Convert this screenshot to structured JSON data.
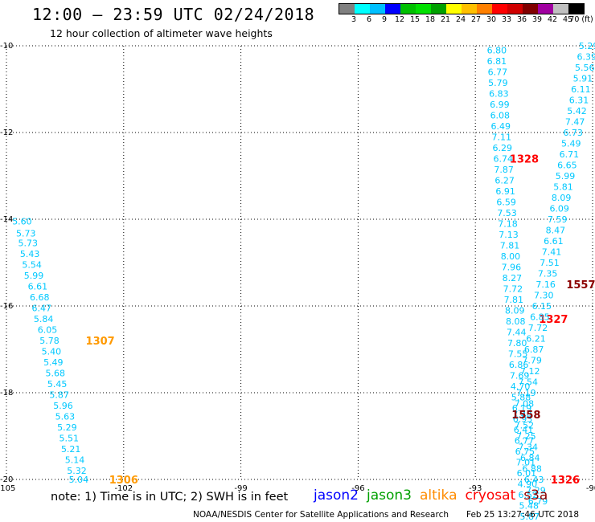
{
  "title": "12:00 – 23:59 UTC 02/24/2018",
  "subtitle": "12 hour collection of altimeter wave heights",
  "legend": {
    "colors": [
      "#808080",
      "#00ffff",
      "#00c0ff",
      "#0000ff",
      "#00c000",
      "#00e000",
      "#00a000",
      "#ffff00",
      "#ffc000",
      "#ff8000",
      "#ff0000",
      "#d00000",
      "#800000",
      "#a000a0",
      "#c0c0c0",
      "#000000"
    ],
    "labels": [
      "3",
      "6",
      "9",
      "12",
      "15",
      "18",
      "21",
      "24",
      "27",
      "30",
      "33",
      "36",
      "39",
      "42",
      "45",
      "70 (ft)"
    ]
  },
  "axes": {
    "lon_ticks": [
      "-105",
      "-102",
      "-99",
      "-96",
      "-93",
      "-90"
    ],
    "lat_ticks": [
      "-10",
      "-12",
      "-14",
      "-16",
      "-18",
      "-20"
    ]
  },
  "note": "note:  1) Time is in UTC;  2) SWH is in feet",
  "satellites": [
    {
      "name": "jason2",
      "color": "#0000ff"
    },
    {
      "name": "jason3",
      "color": "#00a000"
    },
    {
      "name": "altika",
      "color": "#ff8c00"
    },
    {
      "name": "cryosat",
      "color": "#ff0000"
    },
    {
      "name": "s3a",
      "color": "#8b0000"
    }
  ],
  "credit": "NOAA/NESDIS Center for Satellite Applications and Research",
  "timestamp": "Feb 25 13:27:46 UTC 2018",
  "map_data": {
    "lon_range": [
      -105,
      -90
    ],
    "lat_range": [
      -20,
      -10
    ],
    "tracks": [
      {
        "satellite": "altika",
        "color": "#00c8ff",
        "times": [
          {
            "label": "1307",
            "lon": -102.6,
            "lat": -16.8,
            "color": "#ff9900"
          },
          {
            "label": "1306",
            "lon": -102.0,
            "lat": -20.0,
            "color": "#ff9900"
          }
        ],
        "points": [
          {
            "lon": -104.6,
            "lat": -14.05,
            "v": "5.60"
          },
          {
            "lon": -104.5,
            "lat": -14.32,
            "v": "5.73"
          },
          {
            "lon": -104.45,
            "lat": -14.55,
            "v": "5.73"
          },
          {
            "lon": -104.4,
            "lat": -14.8,
            "v": "5.43"
          },
          {
            "lon": -104.35,
            "lat": -15.05,
            "v": "5.54"
          },
          {
            "lon": -104.3,
            "lat": -15.3,
            "v": "5.99"
          },
          {
            "lon": -104.2,
            "lat": -15.55,
            "v": "6.61"
          },
          {
            "lon": -104.15,
            "lat": -15.8,
            "v": "6.68"
          },
          {
            "lon": -104.1,
            "lat": -16.05,
            "v": "6.47"
          },
          {
            "lon": -104.05,
            "lat": -16.3,
            "v": "5.84"
          },
          {
            "lon": -103.95,
            "lat": -16.55,
            "v": "6.05"
          },
          {
            "lon": -103.9,
            "lat": -16.8,
            "v": "5.78"
          },
          {
            "lon": -103.85,
            "lat": -17.05,
            "v": "5.40"
          },
          {
            "lon": -103.8,
            "lat": -17.3,
            "v": "5.49"
          },
          {
            "lon": -103.75,
            "lat": -17.55,
            "v": "5.68"
          },
          {
            "lon": -103.7,
            "lat": -17.8,
            "v": "5.45"
          },
          {
            "lon": -103.65,
            "lat": -18.05,
            "v": "5.87"
          },
          {
            "lon": -103.55,
            "lat": -18.3,
            "v": "5.96"
          },
          {
            "lon": -103.5,
            "lat": -18.55,
            "v": "5.63"
          },
          {
            "lon": -103.45,
            "lat": -18.8,
            "v": "5.29"
          },
          {
            "lon": -103.4,
            "lat": -19.05,
            "v": "5.51"
          },
          {
            "lon": -103.35,
            "lat": -19.3,
            "v": "5.21"
          },
          {
            "lon": -103.25,
            "lat": -19.55,
            "v": "5.14"
          },
          {
            "lon": -103.2,
            "lat": -19.8,
            "v": "5.32"
          },
          {
            "lon": -103.15,
            "lat": -20.0,
            "v": "5.04"
          }
        ]
      },
      {
        "satellite": "cryosat",
        "color": "#00c8ff",
        "times": [
          {
            "label": "1328",
            "lon": -91.75,
            "lat": -12.6,
            "color": "#ff0000"
          },
          {
            "label": "1327",
            "lon": -91.0,
            "lat": -16.3,
            "color": "#ff0000"
          },
          {
            "label": "1326",
            "lon": -90.7,
            "lat": -20.0,
            "color": "#ff0000"
          }
        ],
        "points": [
          {
            "lon": -92.45,
            "lat": -10.1,
            "v": "6.80"
          },
          {
            "lon": -92.45,
            "lat": -10.35,
            "v": "6.81"
          },
          {
            "lon": -92.43,
            "lat": -10.6,
            "v": "6.77"
          },
          {
            "lon": -92.42,
            "lat": -10.85,
            "v": "5.79"
          },
          {
            "lon": -92.4,
            "lat": -11.1,
            "v": "6.83"
          },
          {
            "lon": -92.38,
            "lat": -11.35,
            "v": "6.99"
          },
          {
            "lon": -92.37,
            "lat": -11.6,
            "v": "6.08"
          },
          {
            "lon": -92.35,
            "lat": -11.85,
            "v": "6.49"
          },
          {
            "lon": -92.33,
            "lat": -12.1,
            "v": "7.11"
          },
          {
            "lon": -92.31,
            "lat": -12.35,
            "v": "6.29"
          },
          {
            "lon": -92.29,
            "lat": -12.6,
            "v": "6.74"
          },
          {
            "lon": -92.27,
            "lat": -12.85,
            "v": "7.87"
          },
          {
            "lon": -92.25,
            "lat": -13.1,
            "v": "6.27"
          },
          {
            "lon": -92.23,
            "lat": -13.35,
            "v": "6.91"
          },
          {
            "lon": -92.21,
            "lat": -13.6,
            "v": "6.59"
          },
          {
            "lon": -92.19,
            "lat": -13.85,
            "v": "7.53"
          },
          {
            "lon": -92.17,
            "lat": -14.1,
            "v": "7.18"
          },
          {
            "lon": -92.15,
            "lat": -14.35,
            "v": "7.13"
          },
          {
            "lon": -92.12,
            "lat": -14.6,
            "v": "7.81"
          },
          {
            "lon": -92.1,
            "lat": -14.85,
            "v": "8.00"
          },
          {
            "lon": -92.08,
            "lat": -15.1,
            "v": "7.96"
          },
          {
            "lon": -92.06,
            "lat": -15.35,
            "v": "8.27"
          },
          {
            "lon": -92.04,
            "lat": -15.6,
            "v": "7.72"
          },
          {
            "lon": -92.02,
            "lat": -15.85,
            "v": "7.81"
          },
          {
            "lon": -91.99,
            "lat": -16.1,
            "v": "8.09"
          },
          {
            "lon": -91.97,
            "lat": -16.35,
            "v": "8.08"
          },
          {
            "lon": -91.95,
            "lat": -16.6,
            "v": "7.44"
          },
          {
            "lon": -91.93,
            "lat": -16.85,
            "v": "7.80"
          },
          {
            "lon": -91.91,
            "lat": -17.1,
            "v": "7.55"
          },
          {
            "lon": -91.89,
            "lat": -17.35,
            "v": "6.86"
          },
          {
            "lon": -91.87,
            "lat": -17.6,
            "v": "7.69"
          },
          {
            "lon": -91.85,
            "lat": -17.85,
            "v": "4.70"
          },
          {
            "lon": -91.83,
            "lat": -18.1,
            "v": "5.88"
          },
          {
            "lon": -91.81,
            "lat": -18.35,
            "v": "6.19"
          },
          {
            "lon": -91.79,
            "lat": -18.6,
            "v": "6.93"
          },
          {
            "lon": -91.77,
            "lat": -18.85,
            "v": "6.41"
          },
          {
            "lon": -91.75,
            "lat": -19.1,
            "v": "6.77"
          },
          {
            "lon": -91.73,
            "lat": -19.35,
            "v": "6.75"
          },
          {
            "lon": -91.71,
            "lat": -19.6,
            "v": "7.01"
          },
          {
            "lon": -91.69,
            "lat": -19.85,
            "v": "6.01"
          },
          {
            "lon": -91.67,
            "lat": -20.1,
            "v": "4.90"
          },
          {
            "lon": -91.65,
            "lat": -20.35,
            "v": "6.52"
          },
          {
            "lon": -91.63,
            "lat": -20.6,
            "v": "5.48"
          },
          {
            "lon": -91.61,
            "lat": -20.85,
            "v": "5.87"
          }
        ]
      },
      {
        "satellite": "s3a",
        "color": "#00c8ff",
        "times": [
          {
            "label": "1557",
            "lon": -90.3,
            "lat": -15.5,
            "color": "#8b0000"
          },
          {
            "label": "1558",
            "lon": -91.7,
            "lat": -18.5,
            "color": "#8b0000"
          }
        ],
        "points": [
          {
            "lon": -90.1,
            "lat": -10.0,
            "v": "5.29"
          },
          {
            "lon": -90.15,
            "lat": -10.25,
            "v": "6.39"
          },
          {
            "lon": -90.2,
            "lat": -10.5,
            "v": "5.56"
          },
          {
            "lon": -90.25,
            "lat": -10.75,
            "v": "5.91"
          },
          {
            "lon": -90.3,
            "lat": -11.0,
            "v": "6.11"
          },
          {
            "lon": -90.35,
            "lat": -11.25,
            "v": "6.31"
          },
          {
            "lon": -90.4,
            "lat": -11.5,
            "v": "5.42"
          },
          {
            "lon": -90.45,
            "lat": -11.75,
            "v": "7.47"
          },
          {
            "lon": -90.5,
            "lat": -12.0,
            "v": "6.73"
          },
          {
            "lon": -90.55,
            "lat": -12.25,
            "v": "5.49"
          },
          {
            "lon": -90.6,
            "lat": -12.5,
            "v": "6.71"
          },
          {
            "lon": -90.65,
            "lat": -12.75,
            "v": "6.65"
          },
          {
            "lon": -90.7,
            "lat": -13.0,
            "v": "5.99"
          },
          {
            "lon": -90.75,
            "lat": -13.25,
            "v": "5.81"
          },
          {
            "lon": -90.8,
            "lat": -13.5,
            "v": "8.09"
          },
          {
            "lon": -90.85,
            "lat": -13.75,
            "v": "6.09"
          },
          {
            "lon": -90.9,
            "lat": -14.0,
            "v": "7.59"
          },
          {
            "lon": -90.95,
            "lat": -14.25,
            "v": "8.47"
          },
          {
            "lon": -91.0,
            "lat": -14.5,
            "v": "6.61"
          },
          {
            "lon": -91.05,
            "lat": -14.75,
            "v": "7.41"
          },
          {
            "lon": -91.1,
            "lat": -15.0,
            "v": "7.51"
          },
          {
            "lon": -91.15,
            "lat": -15.25,
            "v": "7.35"
          },
          {
            "lon": -91.2,
            "lat": -15.5,
            "v": "7.16"
          },
          {
            "lon": -91.25,
            "lat": -15.75,
            "v": "7.30"
          },
          {
            "lon": -91.3,
            "lat": -16.0,
            "v": "6.15"
          },
          {
            "lon": -91.35,
            "lat": -16.25,
            "v": "6.85"
          },
          {
            "lon": -91.4,
            "lat": -16.5,
            "v": "7.72"
          },
          {
            "lon": -91.45,
            "lat": -16.75,
            "v": "6.21"
          },
          {
            "lon": -91.5,
            "lat": -17.0,
            "v": "6.87"
          },
          {
            "lon": -91.55,
            "lat": -17.25,
            "v": "7.79"
          },
          {
            "lon": -91.6,
            "lat": -17.5,
            "v": "7.12"
          },
          {
            "lon": -91.65,
            "lat": -17.75,
            "v": "7.54"
          },
          {
            "lon": -91.7,
            "lat": -18.0,
            "v": "7.19"
          },
          {
            "lon": -91.75,
            "lat": -18.25,
            "v": "7.08"
          },
          {
            "lon": -91.8,
            "lat": -18.5,
            "v": "7.40"
          },
          {
            "lon": -91.75,
            "lat": -18.75,
            "v": "7.52"
          },
          {
            "lon": -91.7,
            "lat": -19.0,
            "v": "7.25"
          },
          {
            "lon": -91.65,
            "lat": -19.25,
            "v": "7.34"
          },
          {
            "lon": -91.6,
            "lat": -19.5,
            "v": "6.84"
          },
          {
            "lon": -91.55,
            "lat": -19.75,
            "v": "6.88"
          },
          {
            "lon": -91.5,
            "lat": -20.0,
            "v": "6.43"
          },
          {
            "lon": -91.45,
            "lat": -20.25,
            "v": "7.29"
          },
          {
            "lon": -91.4,
            "lat": -20.5,
            "v": "6.79"
          }
        ]
      }
    ]
  }
}
